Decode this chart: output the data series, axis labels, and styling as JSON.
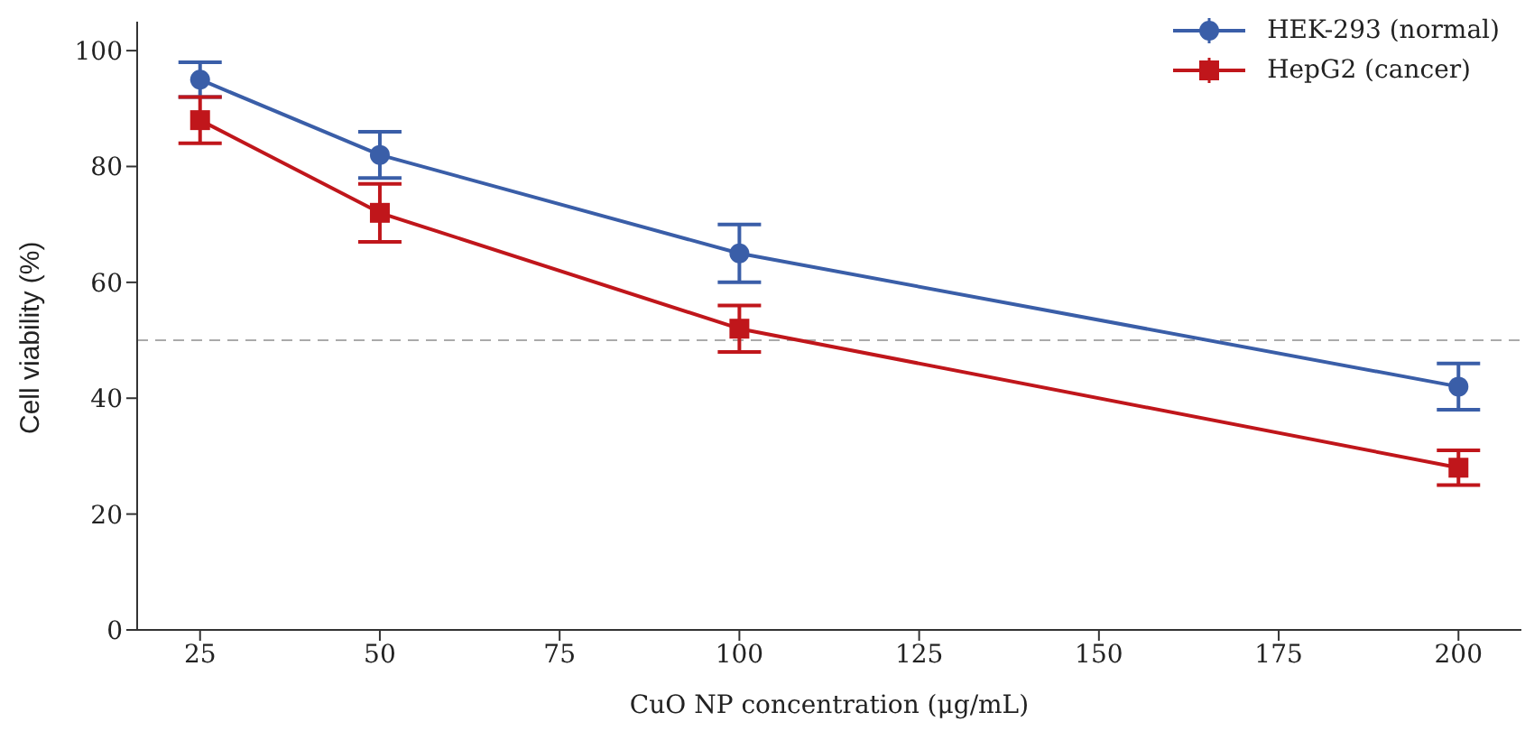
{
  "chart_data": {
    "type": "line",
    "xlabel": "CuO NP concentration (μg/mL)",
    "ylabel": "Cell viability (%)",
    "x": [
      25,
      50,
      100,
      200
    ],
    "series": [
      {
        "name": "HEK-293 (normal)",
        "color": "#3a5ea8",
        "marker": "circle",
        "values": [
          95,
          82,
          65,
          42
        ],
        "errors": [
          3,
          4,
          5,
          4
        ]
      },
      {
        "name": "HepG2 (cancer)",
        "color": "#c0161b",
        "marker": "square",
        "values": [
          88,
          72,
          52,
          28
        ],
        "errors": [
          4,
          5,
          4,
          3
        ]
      }
    ],
    "xlim": [
      16.25,
      208.75
    ],
    "xticks": [
      25,
      50,
      75,
      100,
      125,
      150,
      175,
      200
    ],
    "ylim": [
      0,
      105
    ],
    "yticks": [
      0,
      20,
      40,
      60,
      80,
      100
    ],
    "ref_lines": [
      {
        "axis": "y",
        "value": 50,
        "color": "#aaaaaa",
        "line_style": "dashed"
      }
    ],
    "grid": false,
    "legend": "top right",
    "line_style": "solid"
  }
}
